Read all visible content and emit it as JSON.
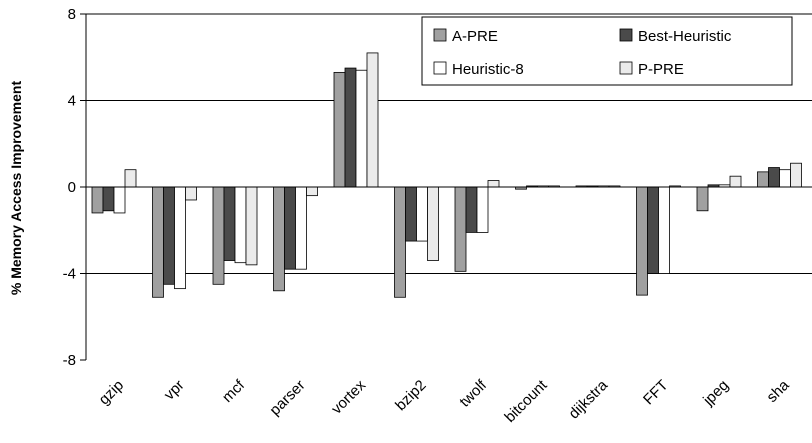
{
  "chart_data": {
    "type": "bar",
    "title": "",
    "xlabel": "",
    "ylabel": "% Memory Access Improvement",
    "ylim": [
      -8,
      8
    ],
    "yticks": [
      -8,
      -4,
      0,
      4,
      8
    ],
    "grid": true,
    "legend_position": "top-right",
    "categories": [
      "gzip",
      "vpr",
      "mcf",
      "parser",
      "vortex",
      "bzip2",
      "twolf",
      "bitcount",
      "dijkstra",
      "FFT",
      "jpeg",
      "sha"
    ],
    "series": [
      {
        "name": "A-PRE",
        "color": "#a0a0a0",
        "values": [
          -1.2,
          -5.1,
          -4.5,
          -4.8,
          5.3,
          -5.1,
          -3.9,
          -0.1,
          0.05,
          -5.0,
          -1.1,
          0.7
        ]
      },
      {
        "name": "Best-Heuristic",
        "color": "#4a4a4a",
        "values": [
          -1.1,
          -4.5,
          -3.4,
          -3.8,
          5.5,
          -2.5,
          -2.1,
          0.05,
          0.05,
          -4.0,
          0.1,
          0.9
        ]
      },
      {
        "name": "Heuristic-8",
        "color": "#ffffff",
        "values": [
          -1.2,
          -4.7,
          -3.5,
          -3.8,
          5.4,
          -2.5,
          -2.1,
          0.05,
          0.05,
          -4.0,
          0.1,
          0.8
        ]
      },
      {
        "name": "P-PRE",
        "color": "#ebebeb",
        "values": [
          0.8,
          -0.6,
          -3.6,
          -0.4,
          6.2,
          -3.4,
          0.3,
          0.05,
          0.05,
          0.05,
          0.5,
          1.1
        ]
      }
    ]
  }
}
